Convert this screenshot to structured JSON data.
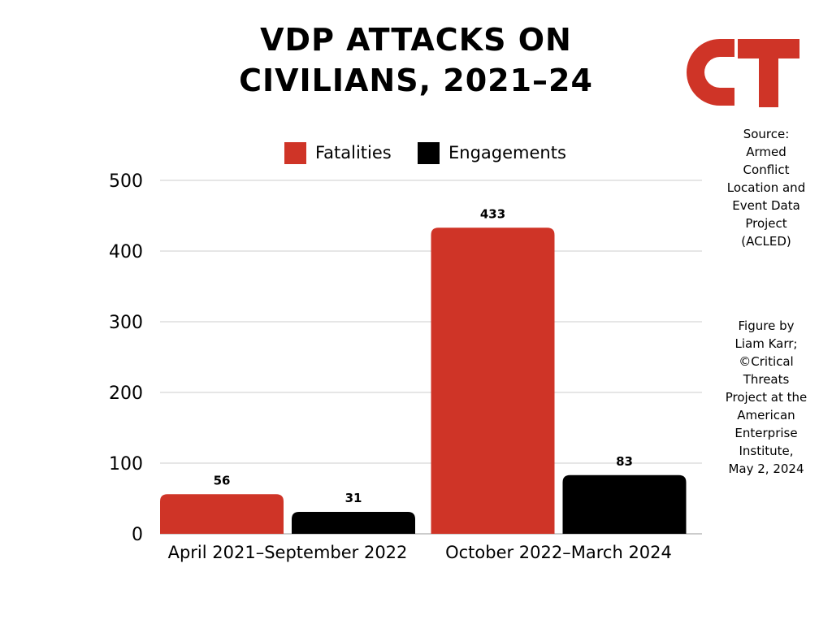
{
  "chart_data": {
    "type": "bar",
    "title": "VDP ATTACKS ON CIVILIANS, 2021–24",
    "categories": [
      "April 2021–September 2022",
      "October 2022–March 2024"
    ],
    "series": [
      {
        "name": "Fatalities",
        "values": [
          56,
          433
        ],
        "color": "#cf3427"
      },
      {
        "name": "Engagements",
        "values": [
          31,
          83
        ],
        "color": "#000000"
      }
    ],
    "ylim": [
      0,
      500
    ],
    "yticks": [
      0,
      100,
      200,
      300,
      400,
      500
    ],
    "grid": true,
    "legend_position": "top-center",
    "data_labels": true
  },
  "source_lines": [
    "Source:",
    "Armed",
    "Conflict",
    "Location and",
    "Event Data",
    "Project",
    "(ACLED)"
  ],
  "credit_lines": [
    "Figure by",
    "Liam Karr;",
    "©Critical",
    "Threats",
    "Project at the",
    "American",
    "Enterprise",
    "Institute,",
    "May 2, 2024"
  ],
  "logo": {
    "letters": "CT",
    "color": "#cf3427"
  }
}
